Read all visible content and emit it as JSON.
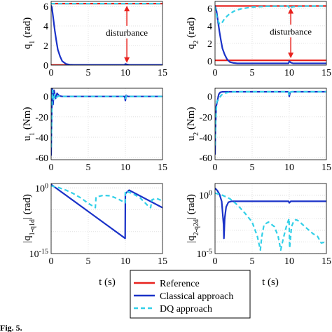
{
  "chart_data": [
    {
      "type": "line",
      "id": "q1",
      "ylabel": "q_1 (rad)",
      "xlim": [
        0,
        15
      ],
      "ylim": [
        0,
        6.5
      ],
      "yticks": [
        0,
        2,
        4,
        6
      ],
      "xticks": [
        0,
        5,
        10,
        15
      ],
      "annotation": "disturbance",
      "grid": true,
      "series": [
        {
          "name": "Reference",
          "color": "#e8221e",
          "dash": "solid",
          "x": [
            0,
            15
          ],
          "y": [
            0.02,
            0.02
          ]
        },
        {
          "name": "Reference",
          "color": "#e8221e",
          "dash": "solid",
          "x": [
            0,
            15
          ],
          "y": [
            6.28,
            6.28
          ]
        },
        {
          "name": "Classical approach",
          "color": "#1a32c8",
          "dash": "solid",
          "x": [
            0,
            0.1,
            0.3,
            0.5,
            0.7,
            0.9,
            1.2,
            1.5,
            2,
            2.5,
            3,
            9.9,
            10,
            10.2,
            10.5,
            15
          ],
          "y": [
            6.1,
            5.9,
            4.7,
            3.5,
            2.5,
            1.6,
            0.9,
            0.4,
            0.12,
            0.05,
            0.03,
            0.03,
            0.12,
            0.08,
            0.03,
            0.03
          ]
        },
        {
          "name": "DQ approach",
          "color": "#33d0e8",
          "dash": "dashed",
          "x": [
            0,
            15
          ],
          "y": [
            6.28,
            6.28
          ]
        }
      ]
    },
    {
      "type": "line",
      "id": "q2",
      "ylabel": "q_2 (rad)",
      "xlim": [
        0,
        15
      ],
      "ylim": [
        -0.5,
        6.8
      ],
      "yticks": [
        0,
        2,
        4,
        6
      ],
      "xticks": [
        0,
        5,
        10,
        15
      ],
      "annotation": "disturbance",
      "grid": true,
      "series": [
        {
          "name": "Reference",
          "color": "#e8221e",
          "dash": "solid",
          "x": [
            0,
            15
          ],
          "y": [
            0.05,
            0.05
          ]
        },
        {
          "name": "Reference",
          "color": "#e8221e",
          "dash": "solid",
          "x": [
            0,
            15
          ],
          "y": [
            6.28,
            6.28
          ]
        },
        {
          "name": "Classical approach",
          "color": "#1a32c8",
          "dash": "solid",
          "x": [
            0,
            0.2,
            0.4,
            0.6,
            0.8,
            1,
            1.3,
            1.6,
            2,
            2.5,
            3,
            9.9,
            10,
            10.2,
            10.5,
            15
          ],
          "y": [
            6.3,
            5.7,
            4.5,
            3.3,
            2.3,
            1.4,
            0.7,
            0.2,
            -0.15,
            -0.25,
            -0.3,
            -0.3,
            -0.05,
            -0.2,
            -0.3,
            -0.3
          ]
        },
        {
          "name": "DQ approach",
          "color": "#33d0e8",
          "dash": "dashed",
          "x": [
            0,
            0.3,
            0.6,
            0.9,
            1.2,
            1.6,
            2,
            2.6,
            3.5,
            5,
            7,
            9.9,
            10,
            10.2,
            10.5,
            12,
            15
          ],
          "y": [
            6.2,
            4.8,
            4.2,
            4.3,
            4.7,
            5.1,
            5.4,
            5.7,
            5.95,
            6.15,
            6.25,
            6.27,
            5.95,
            6.1,
            6.2,
            6.26,
            6.28
          ]
        }
      ]
    },
    {
      "type": "line",
      "id": "u1",
      "ylabel": "u_1 (Nm)",
      "xlim": [
        0,
        15
      ],
      "ylim": [
        -62,
        8
      ],
      "yticks": [
        -60,
        -40,
        -20,
        0
      ],
      "xticks": [
        0,
        5,
        10,
        15
      ],
      "grid": true,
      "series": [
        {
          "name": "Classical approach",
          "color": "#1a32c8",
          "dash": "solid",
          "x": [
            0,
            0.05,
            0.15,
            0.25,
            0.4,
            0.6,
            0.8,
            1.1,
            1.5,
            2,
            3,
            9.9,
            10,
            10.1,
            10.3,
            15
          ],
          "y": [
            -58,
            -30,
            10,
            -8,
            6,
            -2,
            3,
            0.5,
            0,
            0,
            0,
            0,
            -4,
            1,
            0,
            0
          ]
        },
        {
          "name": "DQ approach",
          "color": "#33d0e8",
          "dash": "dashed",
          "x": [
            0,
            0.1,
            0.2,
            0.35,
            0.5,
            0.7,
            1,
            1.4,
            2,
            3,
            9.9,
            10,
            10.15,
            10.4,
            15
          ],
          "y": [
            -50,
            -10,
            6,
            -4,
            2,
            -1,
            0.3,
            0,
            0,
            0,
            0,
            -2,
            0.5,
            0,
            0
          ]
        }
      ]
    },
    {
      "type": "line",
      "id": "u2",
      "ylabel": "u_2 (Nm)",
      "xlim": [
        0,
        15
      ],
      "ylim": [
        -62,
        8
      ],
      "yticks": [
        -60,
        -40,
        -20,
        0
      ],
      "xticks": [
        0,
        5,
        10,
        15
      ],
      "grid": true,
      "series": [
        {
          "name": "Classical approach",
          "color": "#1a32c8",
          "dash": "solid",
          "x": [
            0,
            0.05,
            0.15,
            0.3,
            0.5,
            0.7,
            1,
            1.4,
            2,
            3,
            9.9,
            10,
            10.1,
            10.3,
            15
          ],
          "y": [
            -57,
            -35,
            -10,
            -5,
            2,
            4,
            4.5,
            4.6,
            4.6,
            4.6,
            4.6,
            0,
            4,
            4.6,
            4.6
          ]
        },
        {
          "name": "DQ approach",
          "color": "#33d0e8",
          "dash": "dashed",
          "x": [
            0,
            0.1,
            0.25,
            0.5,
            0.8,
            1.2,
            1.8,
            2.5,
            3.5,
            9.9,
            10,
            10.15,
            10.4,
            15
          ],
          "y": [
            -48,
            -20,
            -5,
            -3,
            1,
            3,
            4,
            4.4,
            4.6,
            4.6,
            1,
            4.2,
            4.6,
            4.6
          ]
        }
      ]
    },
    {
      "type": "line",
      "id": "e1",
      "ylabel": "|q_1-q_1d| (rad)",
      "ylog": true,
      "xlim": [
        0,
        15
      ],
      "ylim": [
        1e-15,
        10
      ],
      "yticks": [
        1e-15,
        1
      ],
      "ytick_labels": [
        "10^-15",
        "10^0"
      ],
      "xticks": [
        0,
        5,
        10,
        15
      ],
      "grid": true,
      "series": [
        {
          "name": "Classical approach",
          "color": "#1a32c8",
          "dash": "solid",
          "x": [
            0,
            9.97,
            10,
            10.5,
            15
          ],
          "y": [
            6,
            3e-12,
            0.05,
            0.3,
            3e-05
          ]
        },
        {
          "name": "DQ approach",
          "color": "#33d0e8",
          "dash": "dashed",
          "x": [
            0,
            1,
            2,
            3,
            4,
            5,
            5.95,
            6.05,
            7,
            8,
            9,
            9.97,
            10,
            11,
            12,
            13,
            13.4,
            13.6,
            14.2,
            15
          ],
          "y": [
            3,
            1.2,
            0.3,
            0.05,
            0.005,
            0.0003,
            3e-05,
            0.008,
            0.02,
            0.015,
            0.003,
            0.0004,
            0.2,
            0.05,
            0.005,
            0.0001,
            3e-05,
            0.002,
            0.004,
            0.001
          ]
        }
      ]
    },
    {
      "type": "line",
      "id": "e2",
      "ylabel": "|q_2-q_2d| (rad)",
      "ylog": true,
      "xlim": [
        0,
        15
      ],
      "ylim": [
        1e-05,
        10
      ],
      "yticks": [
        1e-05,
        1
      ],
      "ytick_labels": [
        "10^-5",
        "10^0"
      ],
      "xticks": [
        0,
        5,
        10,
        15
      ],
      "grid": true,
      "series": [
        {
          "name": "Classical approach",
          "color": "#1a32c8",
          "dash": "solid",
          "x": [
            0,
            0.3,
            0.6,
            0.9,
            1.15,
            1.2,
            1.3,
            1.5,
            1.8,
            2.2,
            3,
            9.9,
            10,
            10.2,
            10.5,
            15
          ],
          "y": [
            4,
            2.5,
            1.2,
            0.3,
            0.003,
            0.0002,
            0.01,
            0.1,
            0.25,
            0.3,
            0.3,
            0.3,
            0.22,
            0.3,
            0.3,
            0.3
          ]
        },
        {
          "name": "DQ approach",
          "color": "#33d0e8",
          "dash": "dashed",
          "x": [
            0,
            1,
            2,
            3,
            4,
            5,
            5.7,
            6.1,
            6.3,
            6.6,
            7.2,
            8,
            8.5,
            8.85,
            9.2,
            9.6,
            9.97,
            10.05,
            10.3,
            10.6,
            10.9,
            11.3,
            11.8,
            12.5,
            13.2,
            13.8,
            14.3,
            15
          ],
          "y": [
            1.5,
            1.0,
            0.5,
            0.15,
            0.03,
            0.005,
            0.0003,
            2e-05,
            0.0003,
            0.003,
            0.005,
            0.002,
            0.0003,
            2e-05,
            0.0002,
            0.002,
            0.01,
            3e-05,
            0.002,
            0.006,
            0.008,
            0.006,
            0.003,
            0.0012,
            0.0005,
            0.0003,
            8e-05,
            0.0001
          ]
        }
      ]
    }
  ],
  "xlabel": "t (s)",
  "legend": {
    "placement": "bottom-center",
    "entries": [
      {
        "label": "Reference",
        "color": "#e8221e",
        "dash": "solid"
      },
      {
        "label": "Classical approach",
        "color": "#1a32c8",
        "dash": "solid"
      },
      {
        "label": "DQ approach",
        "color": "#33d0e8",
        "dash": "dashed"
      }
    ]
  },
  "caption": "Fig. 5."
}
